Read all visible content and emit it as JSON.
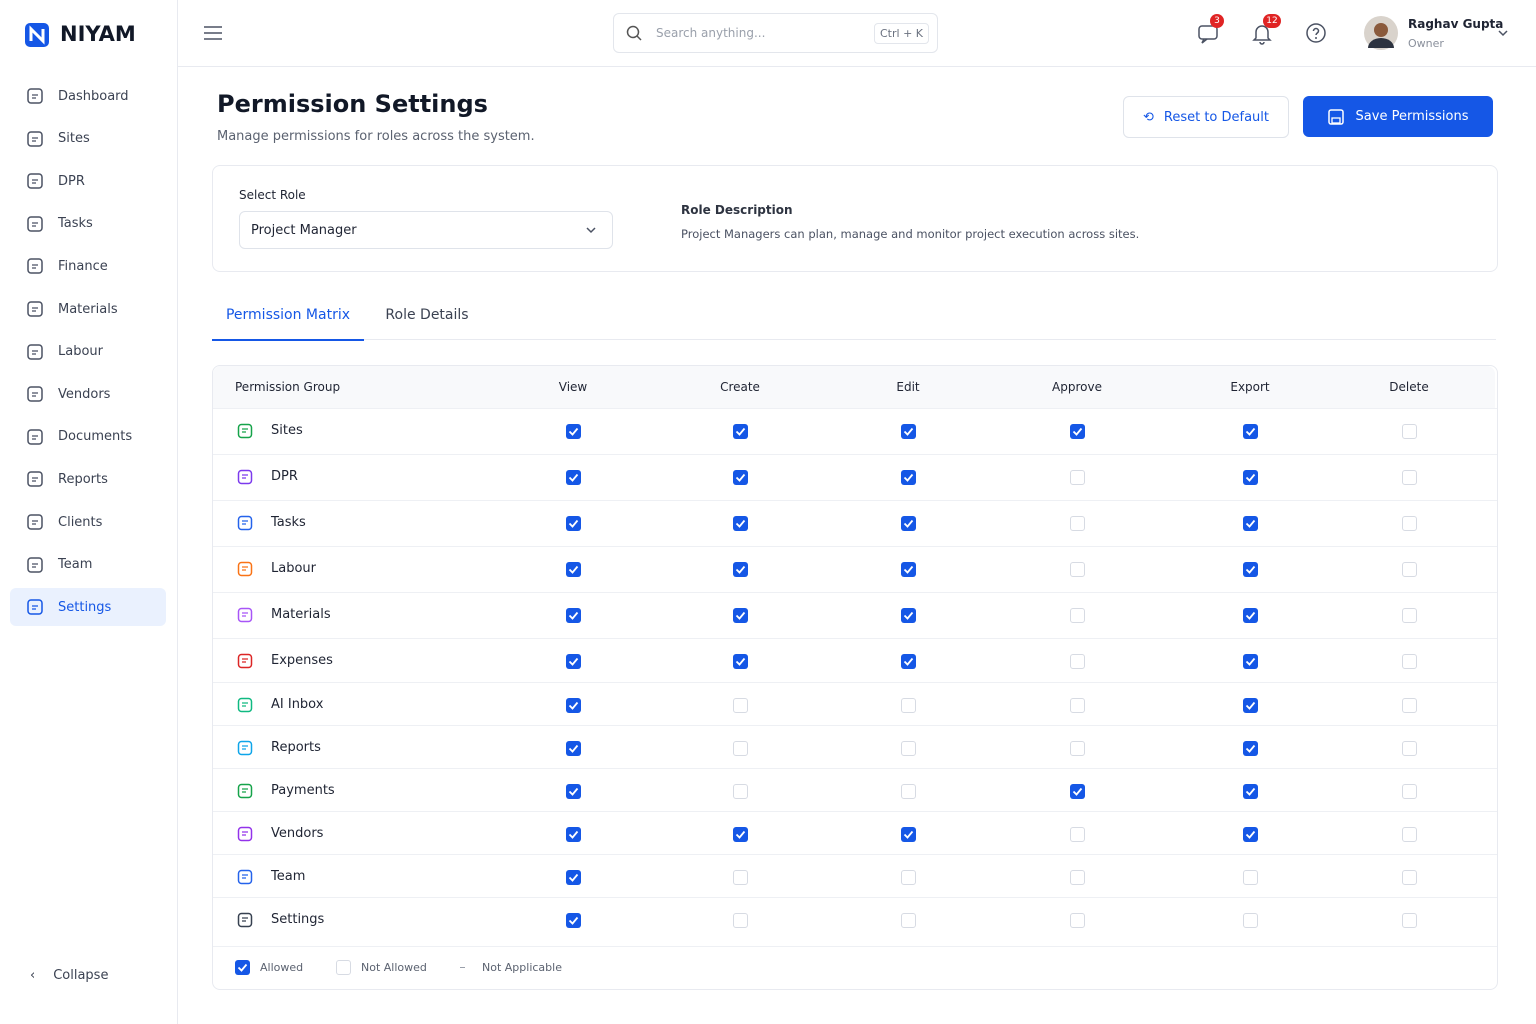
{
  "brand": "NIYAM",
  "nav": {
    "items": [
      "Dashboard",
      "Sites",
      "DPR",
      "Tasks",
      "Finance",
      "Materials",
      "Labour",
      "Vendors",
      "Documents",
      "Reports",
      "Clients",
      "Team",
      "Settings"
    ],
    "active": 12,
    "collapse": "Collapse"
  },
  "topbar": {
    "search_placeholder": "Search anything...",
    "shortcut": "Ctrl + K",
    "messages_badge": 3,
    "notifications_badge": 12,
    "user_name": "Raghav Gupta",
    "user_role": "Owner"
  },
  "header": {
    "title": "Permission Settings",
    "subtitle": "Manage permissions for roles across the system.",
    "reset_button": "Reset to Default",
    "save_button": "Save Permissions"
  },
  "role": {
    "select_label": "Select Role",
    "selected": "Project Manager",
    "description_label": "Role Description",
    "description": "Project Managers can plan, manage and monitor project execution across sites."
  },
  "tabs": {
    "items": [
      "Permission Matrix",
      "Role Details"
    ],
    "active": 0
  },
  "table": {
    "columns": [
      "Permission Group",
      "View",
      "Create",
      "Edit",
      "Approve",
      "Export",
      "Delete"
    ],
    "rows": [
      {
        "name": "Sites",
        "perms": [
          true,
          true,
          true,
          true,
          true,
          false
        ]
      },
      {
        "name": "DPR",
        "perms": [
          true,
          true,
          true,
          false,
          true,
          false
        ]
      },
      {
        "name": "Tasks",
        "perms": [
          true,
          true,
          true,
          false,
          true,
          false
        ]
      },
      {
        "name": "Labour",
        "perms": [
          true,
          true,
          true,
          false,
          true,
          false
        ]
      },
      {
        "name": "Materials",
        "perms": [
          true,
          true,
          true,
          false,
          true,
          false
        ]
      },
      {
        "name": "Expenses",
        "perms": [
          true,
          true,
          true,
          false,
          true,
          false
        ]
      },
      {
        "name": "AI Inbox",
        "perms": [
          true,
          false,
          false,
          false,
          true,
          false
        ]
      },
      {
        "name": "Reports",
        "perms": [
          true,
          false,
          false,
          false,
          true,
          false
        ]
      },
      {
        "name": "Payments",
        "perms": [
          true,
          false,
          false,
          true,
          true,
          false
        ]
      },
      {
        "name": "Vendors",
        "perms": [
          true,
          true,
          true,
          false,
          true,
          false
        ]
      },
      {
        "name": "Team",
        "perms": [
          true,
          false,
          false,
          false,
          false,
          false
        ]
      },
      {
        "name": "Settings",
        "perms": [
          true,
          false,
          false,
          false,
          false,
          false
        ]
      }
    ]
  },
  "legend": {
    "allowed": "Allowed",
    "not_allowed": "Not Allowed",
    "not_applicable": "Not Applicable"
  }
}
